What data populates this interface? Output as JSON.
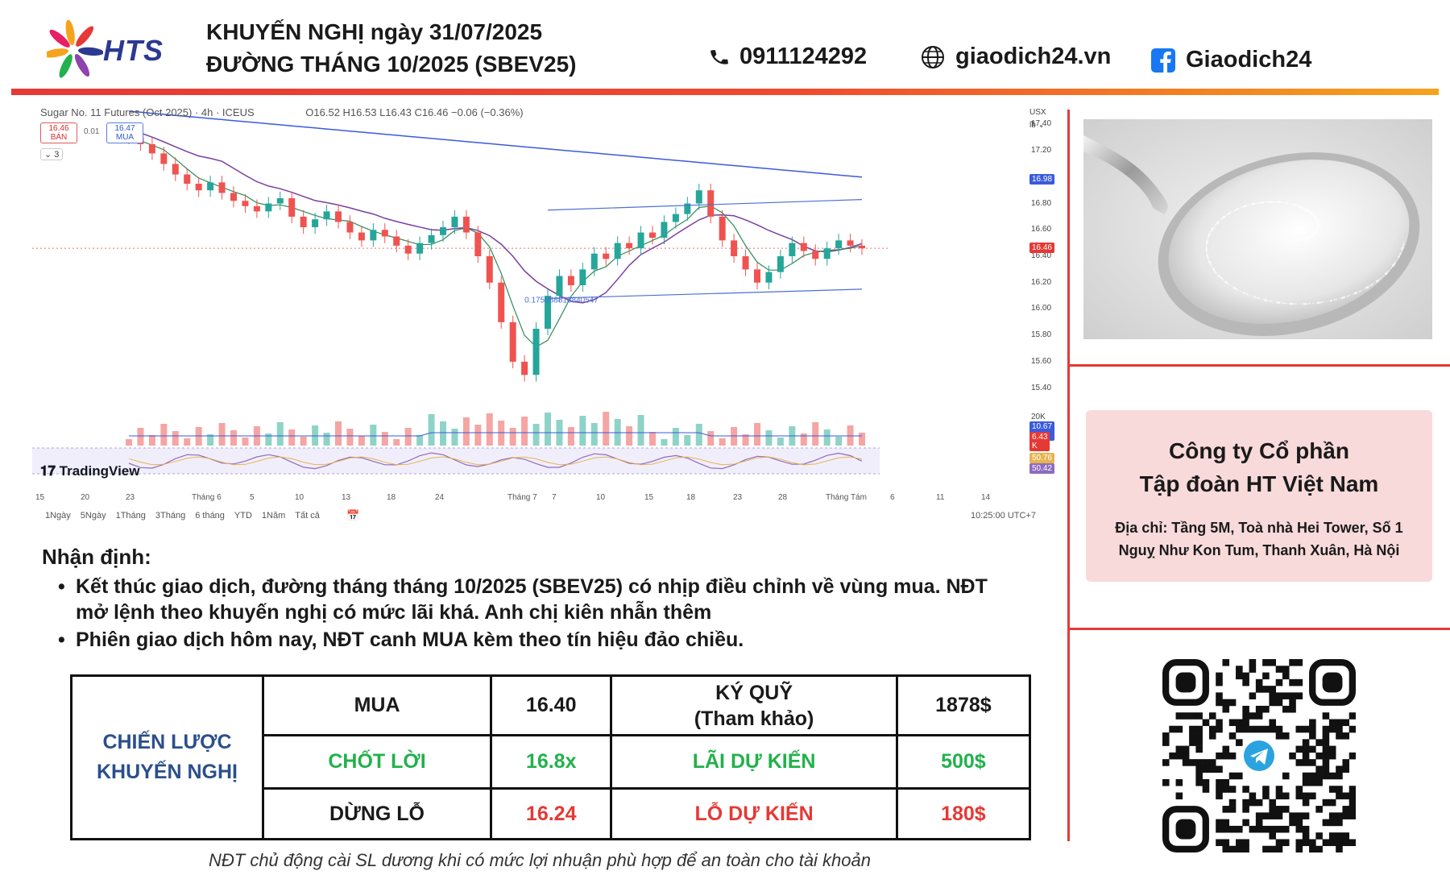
{
  "header": {
    "logo_text": "HTS",
    "title_line1": "KHUYẾN NGHỊ ngày 31/07/2025",
    "title_line2": "ĐƯỜNG THÁNG 10/2025 (SBEV25)",
    "phone": "0911124292",
    "website": "giaodich24.vn",
    "facebook": "Giaodich24",
    "icons": [
      "phone-icon",
      "globe-icon",
      "facebook-icon"
    ]
  },
  "chart": {
    "header_text": "Sugar No. 11 Futures (Oct 2025) · 4h · ICEUS",
    "ohlc_text": "O16.52 H16.53 L16.43 C16.46 −0.06 (−0.36%)",
    "sell_price": "16.46",
    "sell_label": "BÁN",
    "buy_price": "16.47",
    "buy_label": "MUA",
    "spread": "0.01",
    "indicator_count": "3",
    "currency": "USX",
    "unit": "lb",
    "fib_label": "0.175988818840547",
    "brand": "TradingView",
    "ranges": [
      "1Ngày",
      "5Ngày",
      "1Tháng",
      "3Tháng",
      "6 tháng",
      "YTD",
      "1Năm",
      "Tất cả"
    ],
    "time": "10:25:00 UTC+7",
    "price_labels": [
      "17.40",
      "17.20",
      "16.80",
      "16.60",
      "16.40",
      "16.20",
      "16.00",
      "15.80",
      "15.60",
      "15.40"
    ],
    "badges": {
      "ma_long": "16.98",
      "last": "16.46",
      "vol_max": "20K",
      "vol1": "10.67 K",
      "vol2": "6.43 K",
      "osc1": "50.76",
      "osc2": "50.42"
    },
    "x_labels": [
      "15",
      "20",
      "23",
      "Tháng 6",
      "5",
      "10",
      "13",
      "18",
      "24",
      "Tháng 7",
      "7",
      "10",
      "15",
      "18",
      "23",
      "28",
      "Tháng Tám",
      "6",
      "11",
      "14"
    ],
    "colors": {
      "up": "#26a69a",
      "down": "#ef5350",
      "ma_long": "#3b5bdb",
      "ma_mid": "#7b3fa0",
      "ma_short": "#2e8b57",
      "channel": "#4a6fd6"
    }
  },
  "chart_data": {
    "type": "candlestick",
    "title": "Sugar No. 11 Futures (Oct 2025)",
    "xlabel": "",
    "ylabel": "",
    "ylim": [
      15.3,
      17.5
    ],
    "series": [
      {
        "name": "",
        "values": [
          17.3,
          17.25,
          17.18,
          17.1,
          17.02,
          16.95,
          16.9,
          16.96,
          16.88,
          16.82,
          16.78,
          16.74,
          16.8,
          16.84,
          16.7,
          16.62,
          16.68,
          16.74,
          16.66,
          16.58,
          16.52,
          16.6,
          16.55,
          16.48,
          16.42,
          16.5,
          16.56,
          16.62,
          16.7,
          16.58,
          16.4,
          16.2,
          15.9,
          15.6,
          15.5,
          15.85,
          16.1,
          16.25,
          16.18,
          16.3,
          16.42,
          16.38,
          16.5,
          16.46,
          16.58,
          16.54,
          16.66,
          16.72,
          16.8,
          16.9,
          16.7,
          16.52,
          16.4,
          16.3,
          16.2,
          16.28,
          16.4,
          16.5,
          16.44,
          16.38,
          16.46,
          16.52,
          16.48,
          16.46
        ]
      }
    ],
    "last_price": 16.46,
    "grid": false,
    "legend": "none"
  },
  "image": {
    "alt": "sugar-spoon-photo"
  },
  "company": {
    "name_line1": "Công ty Cổ phần",
    "name_line2": "Tập đoàn HT Việt Nam",
    "address_line1": "Địa chỉ: Tầng 5M, Toà nhà Hei Tower, Số 1",
    "address_line2": "Nguỵ Như Kon Tum, Thanh Xuân, Hà Nội"
  },
  "analysis": {
    "title": "Nhận định:",
    "bullet1_line1": "Kết thúc giao dịch, đường tháng tháng 10/2025 (SBEV25) có nhịp điều chỉnh về vùng mua. NĐT",
    "bullet1_line2": "mở lệnh theo khuyến nghị có mức lãi khá. Anh chị kiên nhẫn thêm",
    "bullet2": "Phiên giao dịch hôm nay, NĐT canh MUA kèm theo tín hiệu đảo chiều."
  },
  "strategy": {
    "label_line1": "CHIẾN LƯỢC",
    "label_line2": "KHUYẾN NGHỊ",
    "rows": [
      {
        "action": "MUA",
        "price": "16.40",
        "metric_line1": "KÝ QUỸ",
        "metric_line2": "(Tham khảo)",
        "amount": "1878$"
      },
      {
        "action": "CHỐT LỜI",
        "price": "16.8x",
        "metric_line1": "LÃI DỰ KIẾN",
        "metric_line2": "",
        "amount": "500$"
      },
      {
        "action": "DỪNG LỖ",
        "price": "16.24",
        "metric_line1": "LỖ DỰ KIẾN",
        "metric_line2": "",
        "amount": "180$"
      }
    ]
  },
  "footnote": "NĐT chủ động cài SL dương khi có mức lợi nhuận phù hợp để an toàn cho tài khoản"
}
